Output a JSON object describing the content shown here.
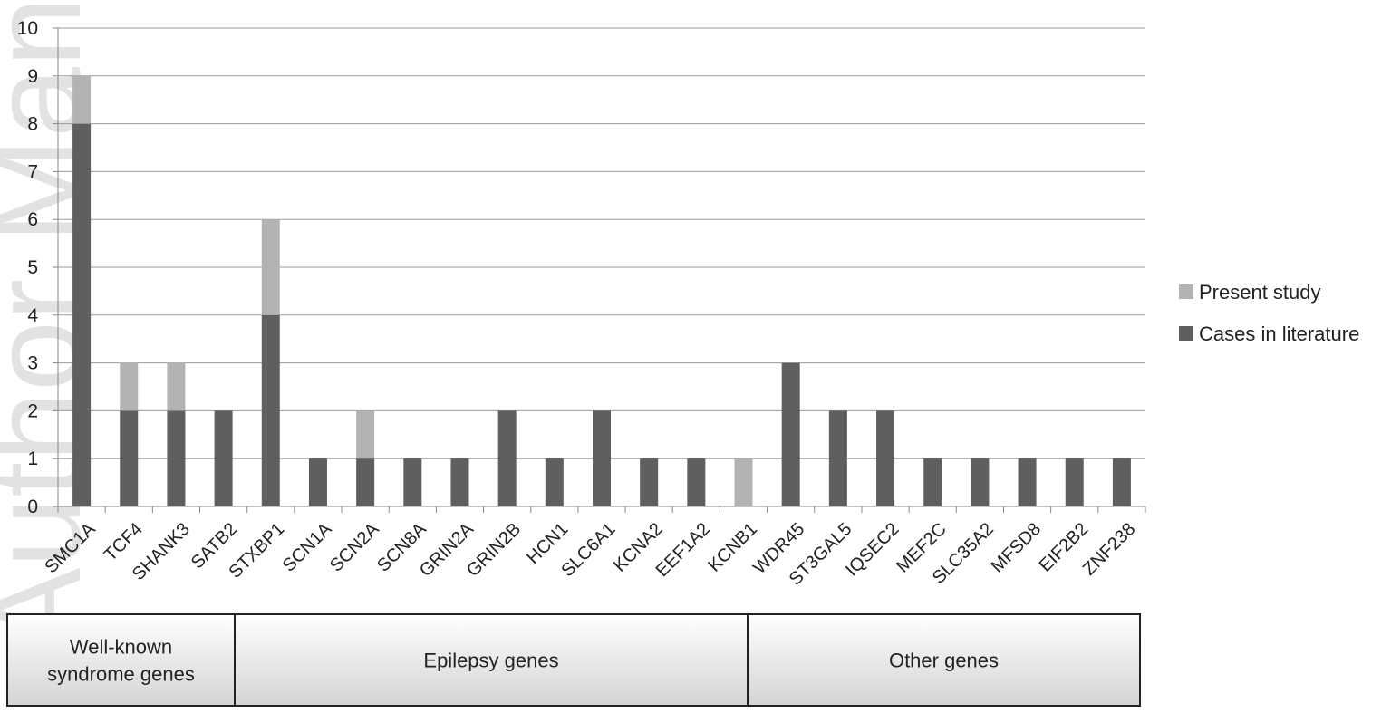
{
  "chart_data": {
    "type": "bar",
    "stacked": true,
    "title": "",
    "xlabel": "",
    "ylabel": "",
    "ylim": [
      0,
      10
    ],
    "yticks": [
      "0",
      "1",
      "2",
      "3",
      "4",
      "5",
      "6",
      "7",
      "8",
      "9",
      "10"
    ],
    "grid": true,
    "legend_position": "right",
    "categories": [
      "SMC1A",
      "TCF4",
      "SHANK3",
      "SATB2",
      "STXBP1",
      "SCN1A",
      "SCN2A",
      "SCN8A",
      "GRIN2A",
      "GRIN2B",
      "HCN1",
      "SLC6A1",
      "KCNA2",
      "EEF1A2",
      "KCNB1",
      "WDR45",
      "ST3GAL5",
      "IQSEC2",
      "MEF2C",
      "SLC35A2",
      "MFSD8",
      "EIF2B2",
      "ZNF238"
    ],
    "series": [
      {
        "name": "Cases in literature",
        "color": "#5f5f5f",
        "values": [
          8,
          2,
          2,
          2,
          4,
          1,
          1,
          1,
          1,
          2,
          1,
          2,
          1,
          1,
          0,
          3,
          2,
          2,
          1,
          1,
          1,
          1,
          1
        ]
      },
      {
        "name": "Present study",
        "color": "#b3b3b3",
        "values": [
          1,
          1,
          1,
          0,
          2,
          0,
          1,
          0,
          0,
          0,
          0,
          0,
          0,
          0,
          1,
          0,
          0,
          0,
          0,
          0,
          0,
          0,
          0
        ]
      }
    ],
    "legend": [
      "Present study",
      "Cases in literature"
    ],
    "groups": [
      {
        "label": "Well-known syndrome genes",
        "lines": [
          "Well-known",
          "syndrome genes"
        ],
        "start": 0,
        "end": 3
      },
      {
        "label": "Epilepsy genes",
        "lines": [
          "Epilepsy genes"
        ],
        "start": 4,
        "end": 14
      },
      {
        "label": "Other genes",
        "lines": [
          "Other genes"
        ],
        "start": 15,
        "end": 22
      }
    ]
  },
  "watermark": {
    "text": "Author Manuscript",
    "color": "#d8d8d8"
  }
}
